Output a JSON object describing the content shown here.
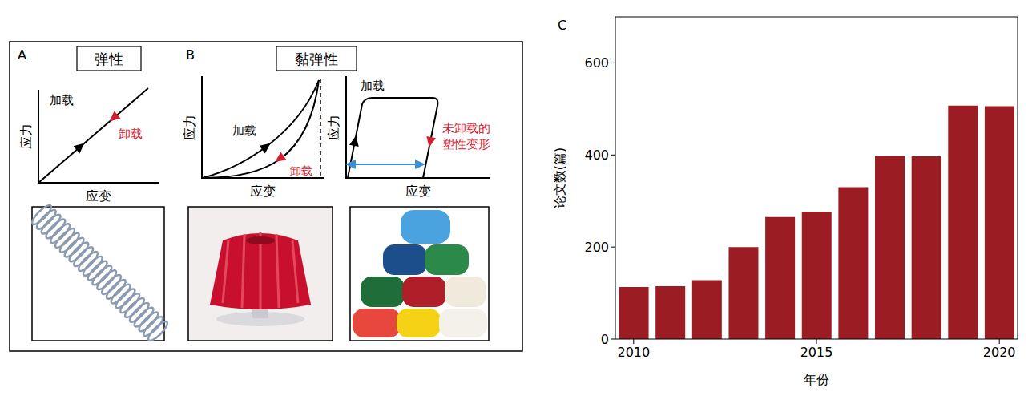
{
  "diagram": {
    "panels": [
      {
        "letter": "A",
        "title": "弹性",
        "plots": [
          {
            "y_label": "应力",
            "x_label": "应变",
            "loading": "加载",
            "unloading": "卸载"
          }
        ]
      },
      {
        "letter": "B",
        "title": "黏弹性",
        "plots": [
          {
            "y_label": "应力",
            "x_label": "应变",
            "loading": "加载",
            "unloading": "卸载"
          },
          {
            "y_label": "应力",
            "x_label": "应变",
            "loading": "加载",
            "unloading": "未卸载的塑性变形"
          }
        ]
      }
    ]
  },
  "chart_data": {
    "type": "bar",
    "title": "C",
    "x_label": "年份",
    "y_label": "论文数(篇)",
    "categories": [
      "2010",
      null,
      null,
      null,
      null,
      "2015",
      null,
      null,
      null,
      null,
      "2020"
    ],
    "values": [
      113,
      115,
      128,
      200,
      265,
      277,
      330,
      398,
      397,
      507,
      506
    ],
    "color": "#9b1c22",
    "ylim": [
      0,
      700
    ],
    "yticks": [
      0,
      200,
      400,
      600
    ],
    "grid": false
  }
}
